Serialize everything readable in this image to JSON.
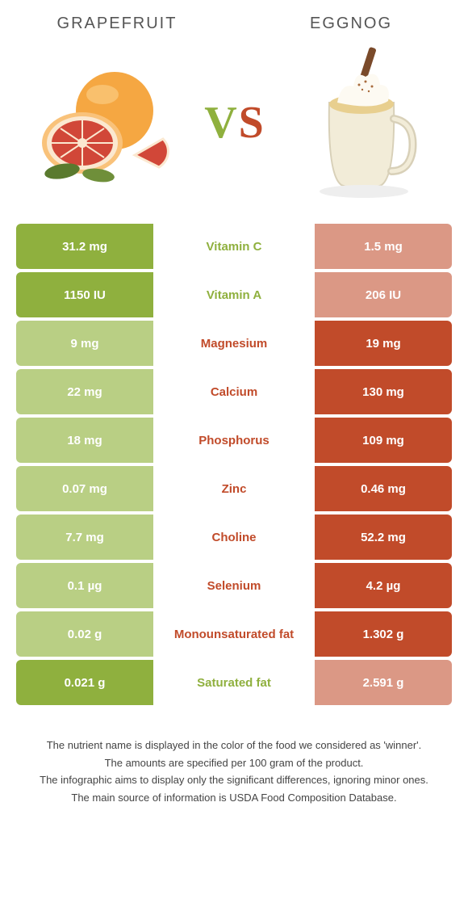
{
  "colors": {
    "left": "#8fb03e",
    "right": "#c14b2a",
    "left_dim": "#b9cf84",
    "right_dim": "#db9885"
  },
  "header": {
    "left": "GRAPEFRUIT",
    "right": "EGGNOG",
    "vs_v": "V",
    "vs_s": "S"
  },
  "rows": [
    {
      "name": "Vitamin C",
      "left": "31.2 mg",
      "right": "1.5 mg",
      "winner": "left"
    },
    {
      "name": "Vitamin A",
      "left": "1150 IU",
      "right": "206 IU",
      "winner": "left"
    },
    {
      "name": "Magnesium",
      "left": "9 mg",
      "right": "19 mg",
      "winner": "right"
    },
    {
      "name": "Calcium",
      "left": "22 mg",
      "right": "130 mg",
      "winner": "right"
    },
    {
      "name": "Phosphorus",
      "left": "18 mg",
      "right": "109 mg",
      "winner": "right"
    },
    {
      "name": "Zinc",
      "left": "0.07 mg",
      "right": "0.46 mg",
      "winner": "right"
    },
    {
      "name": "Choline",
      "left": "7.7 mg",
      "right": "52.2 mg",
      "winner": "right"
    },
    {
      "name": "Selenium",
      "left": "0.1 µg",
      "right": "4.2 µg",
      "winner": "right"
    },
    {
      "name": "Monounsaturated fat",
      "left": "0.02 g",
      "right": "1.302 g",
      "winner": "right"
    },
    {
      "name": "Saturated fat",
      "left": "0.021 g",
      "right": "2.591 g",
      "winner": "left"
    }
  ],
  "footnotes": [
    "The nutrient name is displayed in the color of the food we considered as 'winner'.",
    "The amounts are specified per 100 gram of the product.",
    "The infographic aims to display only the significant differences, ignoring minor ones.",
    "The main source of information is USDA Food Composition Database."
  ]
}
